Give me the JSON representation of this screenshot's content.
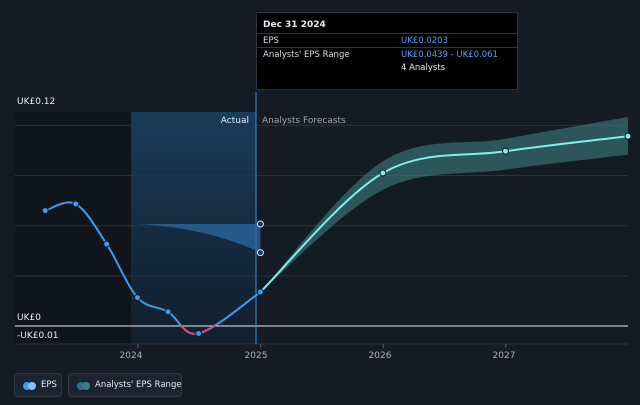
{
  "tooltip": {
    "date": "Dec 31 2024",
    "rows": [
      {
        "label": "EPS",
        "value": "UK£0.0203"
      },
      {
        "label": "Analysts' EPS Range",
        "value": "UK£0.0439 - UK£0.061"
      },
      {
        "label": "",
        "value": "4 Analysts"
      }
    ]
  },
  "regions": {
    "actual": "Actual",
    "forecast": "Analysts Forecasts"
  },
  "legend": {
    "eps": "EPS",
    "range": "Analysts' EPS Range"
  },
  "colors": {
    "background": "#151b24",
    "eps_line": "#3b9df0",
    "forecast_line": "#7ff0ea",
    "range_band": "#3c7f7d",
    "negative": "#e04b57",
    "highlight": "#1e4f7a"
  },
  "chart_data": {
    "type": "line",
    "xlabel": "",
    "ylabel": "",
    "x_ticks": [
      "2024",
      "2025",
      "2026",
      "2027"
    ],
    "y_ticks": [
      "UK£0.12",
      "UK£0",
      "-UK£0.01"
    ],
    "y_tick_values": [
      0.12,
      0,
      -0.01
    ],
    "xlim": [
      "2022-12-31",
      "2027-12-31"
    ],
    "ylim": [
      -0.0145,
      0.128
    ],
    "grid": true,
    "legend_position": "bottom-left",
    "series": [
      {
        "name": "EPS",
        "points": [
          {
            "x": "2023-03-31",
            "y": 0.069
          },
          {
            "x": "2023-06-30",
            "y": 0.073
          },
          {
            "x": "2023-09-30",
            "y": 0.049
          },
          {
            "x": "2023-12-31",
            "y": 0.017
          },
          {
            "x": "2024-03-31",
            "y": 0.0085
          },
          {
            "x": "2024-06-30",
            "y": -0.0045
          },
          {
            "x": "2024-12-31",
            "y": 0.0203
          }
        ]
      },
      {
        "name": "EPS forecast",
        "points": [
          {
            "x": "2024-12-31",
            "y": 0.0203
          },
          {
            "x": "2025-12-31",
            "y": 0.0915
          },
          {
            "x": "2026-12-31",
            "y": 0.1045
          },
          {
            "x": "2027-12-31",
            "y": 0.1135
          }
        ]
      },
      {
        "name": "Analysts' EPS Range",
        "low": [
          {
            "x": "2024-12-31",
            "y": 0.0203
          },
          {
            "x": "2025-12-31",
            "y": 0.0815
          },
          {
            "x": "2026-12-31",
            "y": 0.0935
          },
          {
            "x": "2027-12-31",
            "y": 0.1025
          }
        ],
        "high": [
          {
            "x": "2024-12-31",
            "y": 0.0203
          },
          {
            "x": "2025-12-31",
            "y": 0.0985
          },
          {
            "x": "2026-12-31",
            "y": 0.112
          },
          {
            "x": "2027-12-31",
            "y": 0.125
          }
        ]
      },
      {
        "name": "Past analysts' range",
        "low": [
          {
            "x": "2024-01-03",
            "y": 0.061
          },
          {
            "x": "2024-12-31",
            "y": 0.0439
          }
        ],
        "high": [
          {
            "x": "2024-01-03",
            "y": 0.061
          },
          {
            "x": "2024-12-31",
            "y": 0.061
          }
        ],
        "markers": [
          0.061,
          0.0439
        ]
      }
    ]
  }
}
